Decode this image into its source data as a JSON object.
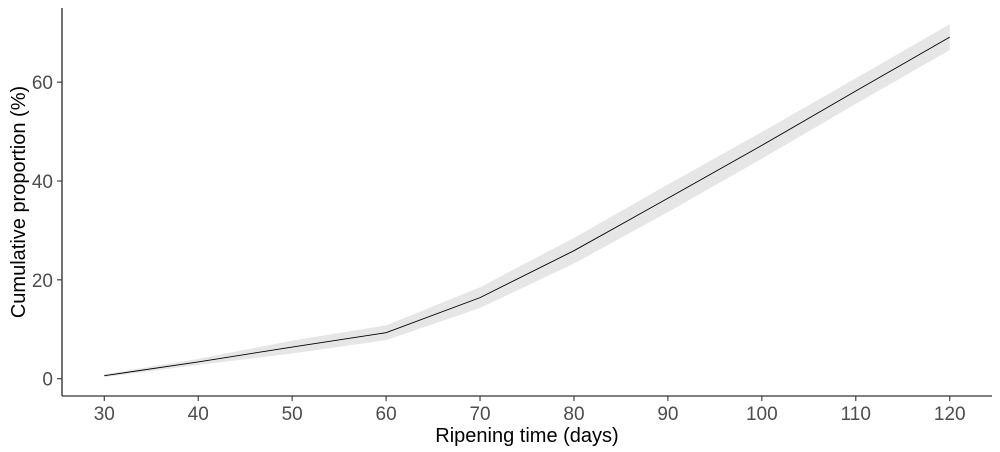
{
  "chart_data": {
    "type": "line",
    "title": "",
    "xlabel": "Ripening time (days)",
    "ylabel": "Cumulative proportion (%)",
    "xlim": [
      25.5,
      124.5
    ],
    "ylim": [
      -3.5,
      75
    ],
    "x_ticks": [
      30,
      40,
      50,
      60,
      70,
      80,
      90,
      100,
      110,
      120
    ],
    "y_ticks": [
      0,
      20,
      40,
      60
    ],
    "grid": false,
    "legend": "none",
    "series": [
      {
        "x": [
          30,
          40,
          50,
          60,
          70,
          80,
          90,
          100,
          110,
          120
        ],
        "y": [
          0.6,
          3.4,
          6.4,
          9.3,
          16.4,
          25.9,
          36.5,
          47.2,
          58.2,
          69.1
        ],
        "lower": [
          0.3,
          2.8,
          5.1,
          7.8,
          14.3,
          23.3,
          33.7,
          44.5,
          55.6,
          66.5
        ],
        "upper": [
          0.9,
          4.0,
          7.7,
          10.8,
          18.5,
          28.5,
          39.3,
          49.9,
          60.8,
          71.7
        ]
      }
    ],
    "colors": {
      "line": "#000000",
      "band": "#e6e6e6",
      "axis": "#000000",
      "tick_label": "#4d4d4d"
    }
  }
}
